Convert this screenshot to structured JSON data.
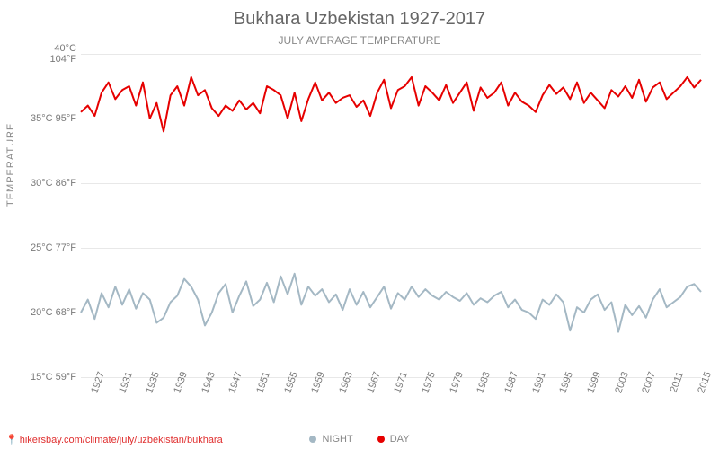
{
  "title": "Bukhara Uzbekistan 1927-2017",
  "subtitle": "JULY AVERAGE TEMPERATURE",
  "y_axis_label": "TEMPERATURE",
  "attribution_url": "hikersbay.com/climate/july/uzbekistan/bukhara",
  "legend": {
    "night": "NIGHT",
    "day": "DAY"
  },
  "chart": {
    "type": "line",
    "background_color": "#ffffff",
    "grid_color": "#e8e8e8",
    "text_color": "#7a7a7a",
    "title_color": "#666666",
    "title_fontsize": 20,
    "subtitle_fontsize": 12,
    "tick_fontsize": 11,
    "y_ticks": [
      {
        "c": "15°C",
        "f": "59°F",
        "val": 15
      },
      {
        "c": "20°C",
        "f": "68°F",
        "val": 20
      },
      {
        "c": "25°C",
        "f": "77°F",
        "val": 25
      },
      {
        "c": "30°C",
        "f": "86°F",
        "val": 30
      },
      {
        "c": "35°C",
        "f": "95°F",
        "val": 35
      },
      {
        "c": "40°C",
        "f": "104°F",
        "val": 40
      }
    ],
    "ylim": [
      15,
      40
    ],
    "x_ticks": [
      1927,
      1931,
      1935,
      1939,
      1943,
      1947,
      1951,
      1955,
      1959,
      1963,
      1967,
      1971,
      1975,
      1979,
      1983,
      1987,
      1991,
      1995,
      1999,
      2003,
      2007,
      2011,
      2015
    ],
    "xlim": [
      1927,
      2017
    ],
    "series": {
      "day": {
        "color": "#e60000",
        "line_width": 2,
        "marker": "circle",
        "marker_size": 3,
        "data": [
          [
            1927,
            35.5
          ],
          [
            1928,
            36.0
          ],
          [
            1929,
            35.2
          ],
          [
            1930,
            37.0
          ],
          [
            1931,
            37.8
          ],
          [
            1932,
            36.5
          ],
          [
            1933,
            37.2
          ],
          [
            1934,
            37.5
          ],
          [
            1935,
            36.0
          ],
          [
            1936,
            37.8
          ],
          [
            1937,
            35.0
          ],
          [
            1938,
            36.2
          ],
          [
            1939,
            34.0
          ],
          [
            1940,
            36.8
          ],
          [
            1941,
            37.5
          ],
          [
            1942,
            36.0
          ],
          [
            1943,
            38.2
          ],
          [
            1944,
            36.8
          ],
          [
            1945,
            37.2
          ],
          [
            1946,
            35.8
          ],
          [
            1947,
            35.2
          ],
          [
            1948,
            36.0
          ],
          [
            1949,
            35.6
          ],
          [
            1950,
            36.4
          ],
          [
            1951,
            35.7
          ],
          [
            1952,
            36.2
          ],
          [
            1953,
            35.4
          ],
          [
            1954,
            37.5
          ],
          [
            1955,
            37.2
          ],
          [
            1956,
            36.8
          ],
          [
            1957,
            35.0
          ],
          [
            1958,
            37.0
          ],
          [
            1959,
            34.8
          ],
          [
            1960,
            36.5
          ],
          [
            1961,
            37.8
          ],
          [
            1962,
            36.4
          ],
          [
            1963,
            37.0
          ],
          [
            1964,
            36.2
          ],
          [
            1965,
            36.6
          ],
          [
            1966,
            36.8
          ],
          [
            1967,
            35.9
          ],
          [
            1968,
            36.4
          ],
          [
            1969,
            35.2
          ],
          [
            1970,
            37.0
          ],
          [
            1971,
            38.0
          ],
          [
            1972,
            35.8
          ],
          [
            1973,
            37.2
          ],
          [
            1974,
            37.5
          ],
          [
            1975,
            38.2
          ],
          [
            1976,
            36.0
          ],
          [
            1977,
            37.5
          ],
          [
            1978,
            37.0
          ],
          [
            1979,
            36.4
          ],
          [
            1980,
            37.6
          ],
          [
            1981,
            36.2
          ],
          [
            1982,
            37.0
          ],
          [
            1983,
            37.8
          ],
          [
            1984,
            35.6
          ],
          [
            1985,
            37.4
          ],
          [
            1986,
            36.6
          ],
          [
            1987,
            37.0
          ],
          [
            1988,
            37.8
          ],
          [
            1989,
            36.0
          ],
          [
            1990,
            37.0
          ],
          [
            1991,
            36.3
          ],
          [
            1992,
            36.0
          ],
          [
            1993,
            35.5
          ],
          [
            1994,
            36.8
          ],
          [
            1995,
            37.6
          ],
          [
            1996,
            36.9
          ],
          [
            1997,
            37.4
          ],
          [
            1998,
            36.5
          ],
          [
            1999,
            37.8
          ],
          [
            2000,
            36.2
          ],
          [
            2001,
            37.0
          ],
          [
            2002,
            36.4
          ],
          [
            2003,
            35.8
          ],
          [
            2004,
            37.2
          ],
          [
            2005,
            36.7
          ],
          [
            2006,
            37.5
          ],
          [
            2007,
            36.6
          ],
          [
            2008,
            38.0
          ],
          [
            2009,
            36.3
          ],
          [
            2010,
            37.4
          ],
          [
            2011,
            37.8
          ],
          [
            2012,
            36.5
          ],
          [
            2013,
            37.0
          ],
          [
            2014,
            37.5
          ],
          [
            2015,
            38.2
          ],
          [
            2016,
            37.4
          ],
          [
            2017,
            38.0
          ]
        ]
      },
      "night": {
        "color": "#a4b8c4",
        "line_width": 2,
        "marker": "circle",
        "marker_size": 3,
        "data": [
          [
            1927,
            20.0
          ],
          [
            1928,
            21.0
          ],
          [
            1929,
            19.5
          ],
          [
            1930,
            21.5
          ],
          [
            1931,
            20.4
          ],
          [
            1932,
            22.0
          ],
          [
            1933,
            20.6
          ],
          [
            1934,
            21.8
          ],
          [
            1935,
            20.3
          ],
          [
            1936,
            21.5
          ],
          [
            1937,
            21.0
          ],
          [
            1938,
            19.2
          ],
          [
            1939,
            19.6
          ],
          [
            1940,
            20.8
          ],
          [
            1941,
            21.3
          ],
          [
            1942,
            22.6
          ],
          [
            1943,
            22.0
          ],
          [
            1944,
            21.0
          ],
          [
            1945,
            19.0
          ],
          [
            1946,
            20.0
          ],
          [
            1947,
            21.5
          ],
          [
            1948,
            22.2
          ],
          [
            1949,
            20.0
          ],
          [
            1950,
            21.3
          ],
          [
            1951,
            22.4
          ],
          [
            1952,
            20.5
          ],
          [
            1953,
            21.0
          ],
          [
            1954,
            22.3
          ],
          [
            1955,
            20.8
          ],
          [
            1956,
            22.8
          ],
          [
            1957,
            21.4
          ],
          [
            1958,
            23.0
          ],
          [
            1959,
            20.6
          ],
          [
            1960,
            22.0
          ],
          [
            1961,
            21.3
          ],
          [
            1962,
            21.8
          ],
          [
            1963,
            20.8
          ],
          [
            1964,
            21.4
          ],
          [
            1965,
            20.2
          ],
          [
            1966,
            21.8
          ],
          [
            1967,
            20.6
          ],
          [
            1968,
            21.6
          ],
          [
            1969,
            20.4
          ],
          [
            1970,
            21.2
          ],
          [
            1971,
            22.0
          ],
          [
            1972,
            20.3
          ],
          [
            1973,
            21.5
          ],
          [
            1974,
            21.0
          ],
          [
            1975,
            22.0
          ],
          [
            1976,
            21.2
          ],
          [
            1977,
            21.8
          ],
          [
            1978,
            21.3
          ],
          [
            1979,
            21.0
          ],
          [
            1980,
            21.6
          ],
          [
            1981,
            21.2
          ],
          [
            1982,
            20.9
          ],
          [
            1983,
            21.5
          ],
          [
            1984,
            20.6
          ],
          [
            1985,
            21.1
          ],
          [
            1986,
            20.8
          ],
          [
            1987,
            21.3
          ],
          [
            1988,
            21.6
          ],
          [
            1989,
            20.4
          ],
          [
            1990,
            21.0
          ],
          [
            1991,
            20.2
          ],
          [
            1992,
            20.0
          ],
          [
            1993,
            19.5
          ],
          [
            1994,
            21.0
          ],
          [
            1995,
            20.6
          ],
          [
            1996,
            21.4
          ],
          [
            1997,
            20.8
          ],
          [
            1998,
            18.6
          ],
          [
            1999,
            20.4
          ],
          [
            2000,
            20.0
          ],
          [
            2001,
            21.0
          ],
          [
            2002,
            21.4
          ],
          [
            2003,
            20.2
          ],
          [
            2004,
            20.8
          ],
          [
            2005,
            18.5
          ],
          [
            2006,
            20.6
          ],
          [
            2007,
            19.8
          ],
          [
            2008,
            20.5
          ],
          [
            2009,
            19.6
          ],
          [
            2010,
            21.0
          ],
          [
            2011,
            21.8
          ],
          [
            2012,
            20.4
          ],
          [
            2013,
            20.8
          ],
          [
            2014,
            21.2
          ],
          [
            2015,
            22.0
          ],
          [
            2016,
            22.2
          ],
          [
            2017,
            21.6
          ]
        ]
      }
    }
  }
}
